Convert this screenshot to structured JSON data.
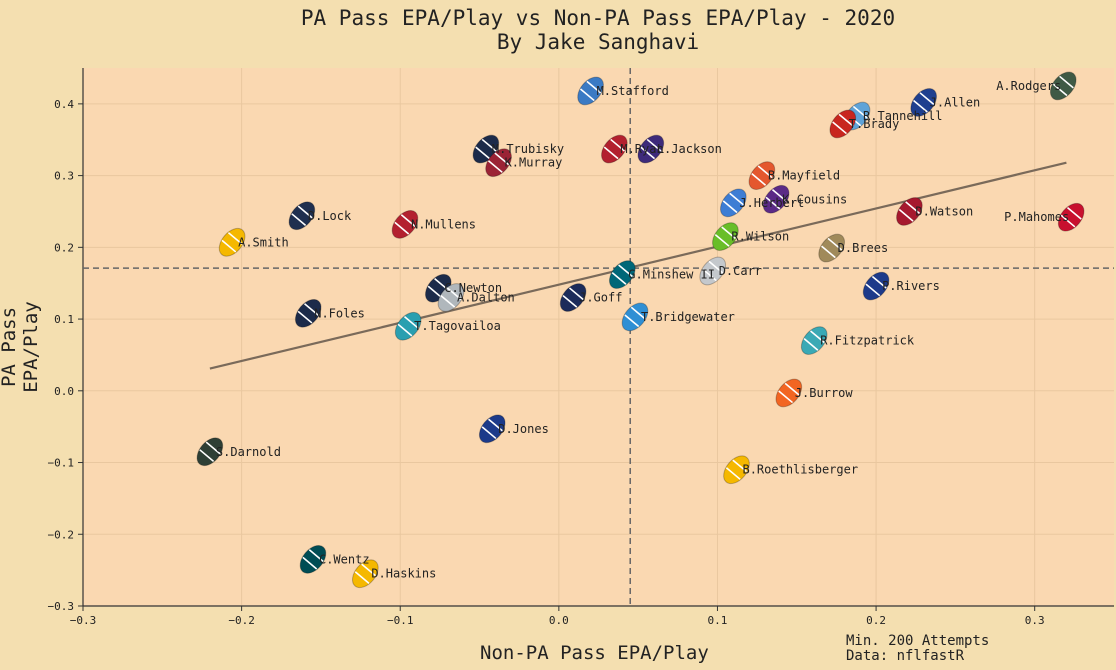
{
  "title": "PA Pass EPA/Play vs Non-PA Pass EPA/Play - 2020",
  "subtitle": "By Jake Sanghavi",
  "notes": [
    "Min. 200 Attempts",
    "Data: nflfastR"
  ],
  "colors": {
    "background": "#f4dfb0",
    "plot_area": "#fad8b1",
    "grid": "#e9c79f",
    "axis": "#333333",
    "trend": "#7a6a5a",
    "mean_line": "#666666"
  },
  "chart_data": {
    "type": "scatter",
    "xlabel": "Non-PA Pass EPA/Play",
    "ylabel": "PA Pass EPA/Play",
    "xlim": [
      -0.3,
      0.35
    ],
    "ylim": [
      -0.3,
      0.45
    ],
    "xticks": [
      -0.3,
      -0.2,
      -0.1,
      0.0,
      0.1,
      0.2,
      0.3
    ],
    "xtick_labels": [
      "−0.3",
      "−0.2",
      "−0.1",
      "0.0",
      "0.1",
      "0.2",
      "0.3"
    ],
    "yticks": [
      -0.3,
      -0.2,
      -0.1,
      0.0,
      0.1,
      0.2,
      0.3,
      0.4
    ],
    "ytick_labels": [
      "−0.3",
      "−0.2",
      "−0.1",
      "0.0",
      "0.1",
      "0.2",
      "0.3",
      "0.4"
    ],
    "grid": true,
    "mean_x": 0.045,
    "mean_y": 0.171,
    "trendline": {
      "x": [
        -0.22,
        0.32
      ],
      "y": [
        0.031,
        0.318
      ]
    },
    "points": [
      {
        "label": "A.Rodgers",
        "x": 0.318,
        "y": 0.425,
        "color": "#3f5a45"
      },
      {
        "label": "J.Allen",
        "x": 0.23,
        "y": 0.402,
        "color": "#1f3f8f"
      },
      {
        "label": "R.Tannehill",
        "x": 0.188,
        "y": 0.383,
        "color": "#5fa3d8"
      },
      {
        "label": "T.Brady",
        "x": 0.179,
        "y": 0.372,
        "color": "#c8261f"
      },
      {
        "label": "M.Stafford",
        "x": 0.02,
        "y": 0.418,
        "color": "#3a7ac4"
      },
      {
        "label": "M.Trubisky",
        "x": -0.046,
        "y": 0.337,
        "color": "#1c2b4a"
      },
      {
        "label": "K.Murray",
        "x": -0.038,
        "y": 0.318,
        "color": "#9b2335"
      },
      {
        "label": "M.Ryan",
        "x": 0.035,
        "y": 0.337,
        "color": "#b3202f"
      },
      {
        "label": "L.Jackson",
        "x": 0.058,
        "y": 0.337,
        "color": "#3d2a7a"
      },
      {
        "label": "B.Mayfield",
        "x": 0.128,
        "y": 0.3,
        "color": "#e4572e"
      },
      {
        "label": "K.Cousins",
        "x": 0.137,
        "y": 0.267,
        "color": "#5b2a86"
      },
      {
        "label": "J.Herbert",
        "x": 0.11,
        "y": 0.262,
        "color": "#3d7dd4"
      },
      {
        "label": "D.Watson",
        "x": 0.221,
        "y": 0.25,
        "color": "#a6192e"
      },
      {
        "label": "P.Mahomes",
        "x": 0.323,
        "y": 0.242,
        "color": "#c8102e"
      },
      {
        "label": "D.Lock",
        "x": -0.162,
        "y": 0.244,
        "color": "#1f2f4f"
      },
      {
        "label": "N.Mullens",
        "x": -0.097,
        "y": 0.232,
        "color": "#b3202f"
      },
      {
        "label": "A.Smith",
        "x": -0.206,
        "y": 0.207,
        "color": "#f5b800"
      },
      {
        "label": "R.Wilson",
        "x": 0.105,
        "y": 0.215,
        "color": "#69be28"
      },
      {
        "label": "D.Brees",
        "x": 0.172,
        "y": 0.199,
        "color": "#a08a5a"
      },
      {
        "label": "G.Minshew II",
        "x": 0.04,
        "y": 0.162,
        "color": "#006778"
      },
      {
        "label": "D.Carr",
        "x": 0.097,
        "y": 0.167,
        "color": "#c4c8cc"
      },
      {
        "label": "P.Rivers",
        "x": 0.2,
        "y": 0.146,
        "color": "#1d3a8a"
      },
      {
        "label": "C.Newton",
        "x": -0.076,
        "y": 0.143,
        "color": "#1c2b4a"
      },
      {
        "label": "A.Dalton",
        "x": -0.068,
        "y": 0.13,
        "color": "#b0b7bc"
      },
      {
        "label": "J.Goff",
        "x": 0.009,
        "y": 0.13,
        "color": "#1c2b5a"
      },
      {
        "label": "N.Foles",
        "x": -0.158,
        "y": 0.108,
        "color": "#1c2b4a"
      },
      {
        "label": "T.Tagovailoa",
        "x": -0.095,
        "y": 0.09,
        "color": "#2a9fb0"
      },
      {
        "label": "T.Bridgewater",
        "x": 0.048,
        "y": 0.103,
        "color": "#2f8fd4"
      },
      {
        "label": "R.Fitzpatrick",
        "x": 0.161,
        "y": 0.07,
        "color": "#3aa9b5"
      },
      {
        "label": "J.Burrow",
        "x": 0.145,
        "y": -0.003,
        "color": "#f26522"
      },
      {
        "label": "D.Jones",
        "x": -0.042,
        "y": -0.053,
        "color": "#1c3a8a"
      },
      {
        "label": "S.Darnold",
        "x": -0.22,
        "y": -0.085,
        "color": "#2e3f35"
      },
      {
        "label": "B.Roethlisberger",
        "x": 0.112,
        "y": -0.11,
        "color": "#f5b800"
      },
      {
        "label": "C.Wentz",
        "x": -0.155,
        "y": -0.235,
        "color": "#004c54"
      },
      {
        "label": "D.Haskins",
        "x": -0.122,
        "y": -0.255,
        "color": "#f5b800"
      }
    ]
  }
}
